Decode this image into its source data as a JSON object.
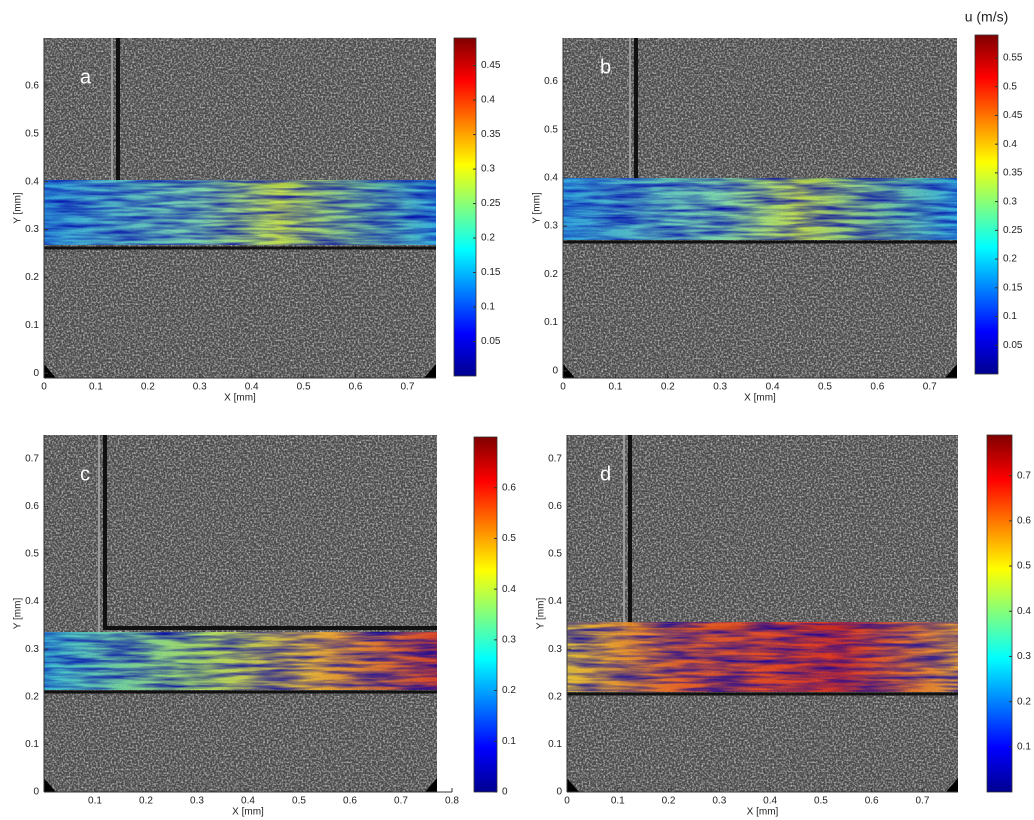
{
  "chart_data": [
    {
      "type": "vector-field",
      "label": "a",
      "xlabel": "X [mm]",
      "ylabel": "Y [mm]",
      "xlim": [
        0,
        0.755
      ],
      "ylim": [
        -0.01,
        0.7
      ],
      "xticks": [
        0,
        0.1,
        0.2,
        0.3,
        0.4,
        0.5,
        0.6,
        0.7
      ],
      "yticks": [
        0,
        0.1,
        0.2,
        0.3,
        0.4,
        0.5,
        0.6
      ],
      "clim": [
        0,
        0.49
      ],
      "cticks": [
        0.05,
        0.1,
        0.15,
        0.2,
        0.25,
        0.3,
        0.35,
        0.4,
        0.45
      ]
    },
    {
      "type": "vector-field",
      "label": "b",
      "xlabel": "X [mm]",
      "ylabel": "Y [mm]",
      "colorbar_title": "u (m/s)",
      "xlim": [
        0,
        0.752
      ],
      "ylim": [
        -0.015,
        0.69
      ],
      "xticks": [
        0,
        0.1,
        0.2,
        0.3,
        0.4,
        0.5,
        0.6,
        0.7
      ],
      "yticks": [
        0,
        0.1,
        0.2,
        0.3,
        0.4,
        0.5,
        0.6
      ],
      "clim": [
        0,
        0.59
      ],
      "cticks": [
        0.05,
        0.1,
        0.15,
        0.2,
        0.25,
        0.3,
        0.35,
        0.4,
        0.45,
        0.5,
        0.55
      ]
    },
    {
      "type": "vector-field",
      "label": "c",
      "xlabel": "X [mm]",
      "ylabel": "Y [mm]",
      "xlim": [
        0,
        0.8
      ],
      "ylim": [
        0,
        0.75
      ],
      "xticks": [
        0.1,
        0.2,
        0.3,
        0.4,
        0.5,
        0.6,
        0.7,
        0.8
      ],
      "yticks": [
        0,
        0.1,
        0.2,
        0.3,
        0.4,
        0.5,
        0.6,
        0.7
      ],
      "clim": [
        0,
        0.7
      ],
      "cticks": [
        0,
        0.1,
        0.2,
        0.3,
        0.4,
        0.5,
        0.6
      ]
    },
    {
      "type": "vector-field",
      "label": "d",
      "xlabel": "X [mm]",
      "ylabel": "Y [mm]",
      "xlim": [
        0,
        0.77
      ],
      "ylim": [
        0,
        0.75
      ],
      "xticks": [
        0,
        0.1,
        0.2,
        0.3,
        0.4,
        0.5,
        0.6,
        0.7
      ],
      "yticks": [
        0,
        0.1,
        0.2,
        0.3,
        0.4,
        0.5,
        0.6,
        0.7
      ],
      "clim": [
        0,
        0.79
      ],
      "cticks": [
        0.1,
        0.2,
        0.3,
        0.4,
        0.5,
        0.6,
        0.7
      ]
    }
  ]
}
